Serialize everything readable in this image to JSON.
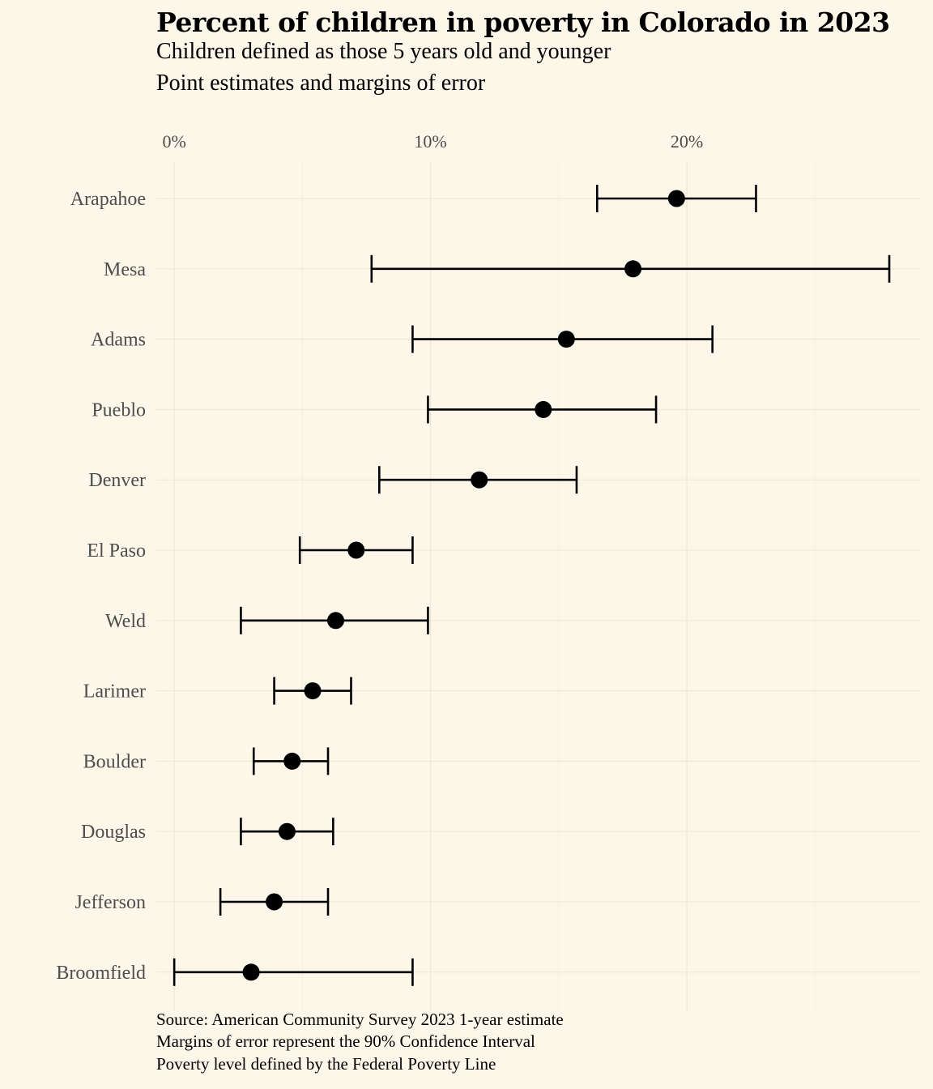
{
  "chart_data": {
    "type": "scatter",
    "title": "Percent of children in poverty in Colorado in 2023",
    "subtitle": [
      "Children defined as those 5 years old and younger",
      "Point estimates and margins of error"
    ],
    "caption": [
      "Source: American Community Survey 2023 1-year estimate",
      "Margins of error represent the 90% Confidence Interval",
      "Poverty level defined by the Federal Poverty Line"
    ],
    "xlabel": "",
    "ylabel": "",
    "x_axis_position": "top",
    "x_ticks": [
      0,
      10,
      20
    ],
    "x_tick_labels": [
      "0%",
      "10%",
      "20%"
    ],
    "xlim": [
      -0.7,
      29.1
    ],
    "grid": true,
    "legend": "none",
    "colors": {
      "background": "#fdf7ea",
      "grid": "#efe7d6",
      "marks": "#000000",
      "label_text": "#4d4d4d"
    },
    "categories": [
      "Arapahoe",
      "Mesa",
      "Adams",
      "Pueblo",
      "Denver",
      "El Paso",
      "Weld",
      "Larimer",
      "Boulder",
      "Douglas",
      "Jefferson",
      "Broomfield"
    ],
    "estimate": [
      19.6,
      17.9,
      15.3,
      14.4,
      11.9,
      7.1,
      6.3,
      5.4,
      4.6,
      4.4,
      3.9,
      3.0
    ],
    "lower": [
      16.5,
      7.7,
      9.3,
      9.9,
      8.0,
      4.9,
      2.6,
      3.9,
      3.1,
      2.6,
      1.8,
      0.0
    ],
    "upper": [
      22.7,
      27.9,
      21.0,
      18.8,
      15.7,
      9.3,
      9.9,
      6.9,
      6.0,
      6.2,
      6.0,
      9.3
    ]
  }
}
